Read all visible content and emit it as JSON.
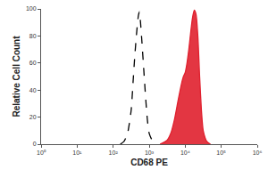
{
  "chart_data": {
    "type": "line",
    "x_label": "CD68 PE",
    "y_label": "Relative Cell Count",
    "log": "x",
    "grid": false,
    "xlim": [
      1,
      1000000
    ],
    "xticks": [
      {
        "value": 1,
        "label": "10⁰"
      },
      {
        "value": 10,
        "label": "10¹"
      },
      {
        "value": 100,
        "label": "10²"
      },
      {
        "value": 1000,
        "label": "10³"
      },
      {
        "value": 10000,
        "label": "10⁴"
      },
      {
        "value": 100000,
        "label": "10⁵"
      },
      {
        "value": 1000000,
        "label": "10⁶"
      }
    ],
    "ylim": [
      0,
      100
    ],
    "yticks": [
      0,
      20,
      40,
      60,
      80,
      100
    ],
    "series": [
      {
        "type": "line",
        "color": "#000000",
        "line_style": "dashed",
        "x": [
          158,
          200,
          251,
          316,
          355,
          398,
          447,
          501,
          537,
          575,
          631,
          708,
          794,
          891,
          1000,
          1259,
          1585
        ],
        "values": [
          0,
          2,
          8,
          25,
          45,
          65,
          82,
          95,
          98,
          90,
          75,
          55,
          35,
          18,
          8,
          2,
          0
        ]
      },
      {
        "type": "area",
        "color": "#e0202e",
        "line_style": "solid",
        "x": [
          1995,
          3162,
          3981,
          5012,
          6310,
          7943,
          8913,
          10000,
          11220,
          12589,
          14125,
          15849,
          17783,
          19953,
          22387,
          25119,
          28184,
          31623,
          39811,
          50119
        ],
        "values": [
          0,
          3,
          8,
          18,
          32,
          45,
          50,
          53,
          60,
          70,
          82,
          93,
          99,
          96,
          80,
          50,
          25,
          10,
          2,
          0
        ]
      }
    ]
  }
}
